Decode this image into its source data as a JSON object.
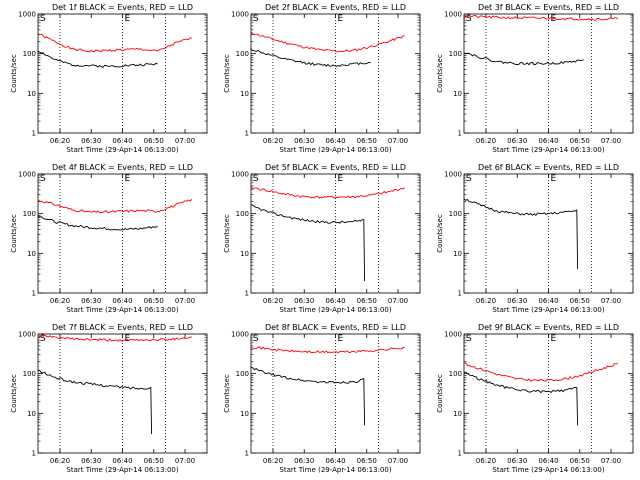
{
  "chart_data": [
    {
      "type": "line",
      "title": "Det 1f BLACK = Events, RED = LLD",
      "xlabel": "Start Time (29-Apr-14 06:13:00)",
      "ylabel": "Counts/sec",
      "yscale": "log",
      "ylim": [
        1,
        1000
      ],
      "xticks": [
        "06:20",
        "06:30",
        "06:40",
        "06:50",
        "07:00"
      ],
      "yticks": [
        "1",
        "10",
        "100",
        "1000"
      ],
      "edge_markers": [
        "S",
        "E"
      ],
      "series": [
        {
          "name": "LLD",
          "color": "#ff0000",
          "x": [
            0,
            5,
            10,
            15,
            20,
            25,
            30,
            35,
            40,
            45
          ],
          "y": [
            320,
            200,
            130,
            115,
            120,
            125,
            130,
            115,
            180,
            250
          ]
        },
        {
          "name": "Events",
          "color": "#000000",
          "x": [
            0,
            5,
            10,
            15,
            20,
            25,
            30,
            35
          ],
          "y": [
            120,
            70,
            52,
            50,
            48,
            50,
            52,
            55
          ]
        }
      ]
    },
    {
      "type": "line",
      "title": "Det 2f BLACK = Events, RED = LLD",
      "xlabel": "Start Time (29-Apr-14 06:13:00)",
      "ylabel": "Counts/sec",
      "yscale": "log",
      "ylim": [
        1,
        1000
      ],
      "xticks": [
        "06:20",
        "06:30",
        "06:40",
        "06:50",
        "07:00"
      ],
      "yticks": [
        "1",
        "10",
        "100",
        "1000"
      ],
      "edge_markers": [
        "S",
        "E"
      ],
      "series": [
        {
          "name": "LLD",
          "color": "#ff0000",
          "x": [
            0,
            5,
            10,
            15,
            20,
            25,
            30,
            35,
            40,
            45
          ],
          "y": [
            340,
            250,
            190,
            150,
            125,
            115,
            120,
            150,
            200,
            280
          ]
        },
        {
          "name": "Events",
          "color": "#000000",
          "x": [
            0,
            5,
            10,
            15,
            20,
            25,
            30,
            35
          ],
          "y": [
            130,
            95,
            72,
            60,
            52,
            50,
            55,
            60
          ]
        }
      ]
    },
    {
      "type": "line",
      "title": "Det 3f BLACK = Events, RED = LLD",
      "xlabel": "Start Time (29-Apr-14 06:13:00)",
      "ylabel": "Counts/sec",
      "yscale": "log",
      "ylim": [
        1,
        1000
      ],
      "xticks": [
        "06:20",
        "06:30",
        "06:40",
        "06:50",
        "07:00"
      ],
      "yticks": [
        "1",
        "10",
        "100",
        "1000"
      ],
      "edge_markers": [
        "S",
        "E"
      ],
      "series": [
        {
          "name": "LLD",
          "color": "#ff0000",
          "x": [
            0,
            5,
            10,
            15,
            20,
            25,
            30,
            35,
            40,
            45
          ],
          "y": [
            900,
            850,
            820,
            800,
            790,
            780,
            760,
            750,
            740,
            760
          ]
        },
        {
          "name": "Events",
          "color": "#000000",
          "x": [
            0,
            5,
            10,
            15,
            20,
            25,
            30,
            35
          ],
          "y": [
            110,
            80,
            62,
            57,
            56,
            57,
            60,
            70
          ]
        }
      ]
    },
    {
      "type": "line",
      "title": "Det 4f BLACK = Events, RED = LLD",
      "xlabel": "Start Time (29-Apr-14 06:13:00)",
      "ylabel": "Counts/sec",
      "yscale": "log",
      "ylim": [
        1,
        1000
      ],
      "xticks": [
        "06:20",
        "06:30",
        "06:40",
        "06:50",
        "07:00"
      ],
      "yticks": [
        "1",
        "10",
        "100",
        "1000"
      ],
      "edge_markers": [
        "S",
        "E"
      ],
      "series": [
        {
          "name": "LLD",
          "color": "#ff0000",
          "x": [
            0,
            5,
            10,
            15,
            20,
            25,
            30,
            35,
            40,
            45
          ],
          "y": [
            220,
            170,
            125,
            110,
            110,
            115,
            120,
            115,
            160,
            230
          ]
        },
        {
          "name": "Events",
          "color": "#000000",
          "x": [
            0,
            5,
            10,
            15,
            20,
            25,
            30,
            35
          ],
          "y": [
            90,
            62,
            50,
            45,
            42,
            40,
            42,
            48
          ]
        }
      ]
    },
    {
      "type": "line",
      "title": "Det 5f BLACK = Events, RED = LLD",
      "xlabel": "Start Time (29-Apr-14 06:13:00)",
      "ylabel": "Counts/sec",
      "yscale": "log",
      "ylim": [
        1,
        1000
      ],
      "xticks": [
        "06:20",
        "06:30",
        "06:40",
        "06:50",
        "07:00"
      ],
      "yticks": [
        "1",
        "10",
        "100",
        "1000"
      ],
      "edge_markers": [
        "S",
        "E"
      ],
      "series": [
        {
          "name": "LLD",
          "color": "#ff0000",
          "x": [
            0,
            5,
            10,
            15,
            20,
            25,
            30,
            35,
            40,
            45
          ],
          "y": [
            460,
            380,
            310,
            270,
            260,
            260,
            265,
            290,
            350,
            450
          ]
        },
        {
          "name": "Events",
          "color": "#000000",
          "x": [
            0,
            5,
            10,
            15,
            20,
            25,
            30,
            33,
            34
          ],
          "y": [
            160,
            110,
            85,
            70,
            62,
            60,
            62,
            70,
            2
          ]
        }
      ]
    },
    {
      "type": "line",
      "title": "Det 6f BLACK = Events, RED = LLD",
      "xlabel": "Start Time (29-Apr-14 06:13:00)",
      "ylabel": "Counts/sec",
      "yscale": "log",
      "ylim": [
        1,
        1000
      ],
      "xticks": [
        "06:20",
        "06:30",
        "06:40",
        "06:50",
        "07:00"
      ],
      "yticks": [
        "1",
        "10",
        "100",
        "1000"
      ],
      "edge_markers": [
        "S",
        "E"
      ],
      "series": [
        {
          "name": "Events",
          "color": "#000000",
          "x": [
            0,
            5,
            10,
            15,
            20,
            25,
            30,
            33,
            34
          ],
          "y": [
            240,
            160,
            115,
            100,
            95,
            100,
            110,
            120,
            4
          ]
        }
      ]
    },
    {
      "type": "line",
      "title": "Det 7f BLACK = Events, RED = LLD",
      "xlabel": "Start Time (29-Apr-14 06:13:00)",
      "ylabel": "Counts/sec",
      "yscale": "log",
      "ylim": [
        1,
        1000
      ],
      "xticks": [
        "06:20",
        "06:30",
        "06:40",
        "06:50",
        "07:00"
      ],
      "yticks": [
        "1",
        "10",
        "100",
        "1000"
      ],
      "edge_markers": [
        "S",
        "E"
      ],
      "series": [
        {
          "name": "LLD",
          "color": "#ff0000",
          "x": [
            0,
            5,
            10,
            15,
            20,
            25,
            30,
            35,
            40,
            45
          ],
          "y": [
            900,
            820,
            750,
            720,
            700,
            690,
            700,
            720,
            750,
            850
          ]
        },
        {
          "name": "Events",
          "color": "#000000",
          "x": [
            0,
            5,
            10,
            15,
            20,
            25,
            30,
            33,
            34
          ],
          "y": [
            120,
            80,
            62,
            55,
            50,
            45,
            42,
            45,
            3
          ]
        }
      ]
    },
    {
      "type": "line",
      "title": "Det 8f BLACK = Events, RED = LLD",
      "xlabel": "Start Time (29-Apr-14 06:13:00)",
      "ylabel": "Counts/sec",
      "yscale": "log",
      "ylim": [
        1,
        1000
      ],
      "xticks": [
        "06:20",
        "06:30",
        "06:40",
        "06:50",
        "07:00"
      ],
      "yticks": [
        "1",
        "10",
        "100",
        "1000"
      ],
      "edge_markers": [
        "S",
        "E"
      ],
      "series": [
        {
          "name": "LLD",
          "color": "#ff0000",
          "x": [
            0,
            5,
            10,
            15,
            20,
            25,
            30,
            35,
            40,
            45
          ],
          "y": [
            480,
            420,
            380,
            360,
            350,
            350,
            360,
            380,
            410,
            460
          ]
        },
        {
          "name": "Events",
          "color": "#000000",
          "x": [
            0,
            5,
            10,
            15,
            20,
            25,
            30,
            33,
            34
          ],
          "y": [
            140,
            100,
            80,
            68,
            62,
            60,
            62,
            70,
            5
          ]
        }
      ]
    },
    {
      "type": "line",
      "title": "Det 9f BLACK = Events, RED = LLD",
      "xlabel": "Start Time (29-Apr-14 06:13:00)",
      "ylabel": "Counts/sec",
      "yscale": "log",
      "ylim": [
        1,
        1000
      ],
      "xticks": [
        "06:20",
        "06:30",
        "06:40",
        "06:50",
        "07:00"
      ],
      "yticks": [
        "1",
        "10",
        "100",
        "1000"
      ],
      "edge_markers": [
        "S",
        "E"
      ],
      "series": [
        {
          "name": "LLD",
          "color": "#ff0000",
          "x": [
            0,
            5,
            10,
            15,
            20,
            25,
            30,
            35,
            40,
            45
          ],
          "y": [
            180,
            130,
            95,
            75,
            68,
            68,
            75,
            95,
            130,
            180
          ]
        },
        {
          "name": "Events",
          "color": "#000000",
          "x": [
            0,
            5,
            10,
            15,
            20,
            25,
            30,
            33,
            34
          ],
          "y": [
            110,
            70,
            50,
            40,
            36,
            35,
            38,
            45,
            5
          ]
        }
      ]
    }
  ]
}
